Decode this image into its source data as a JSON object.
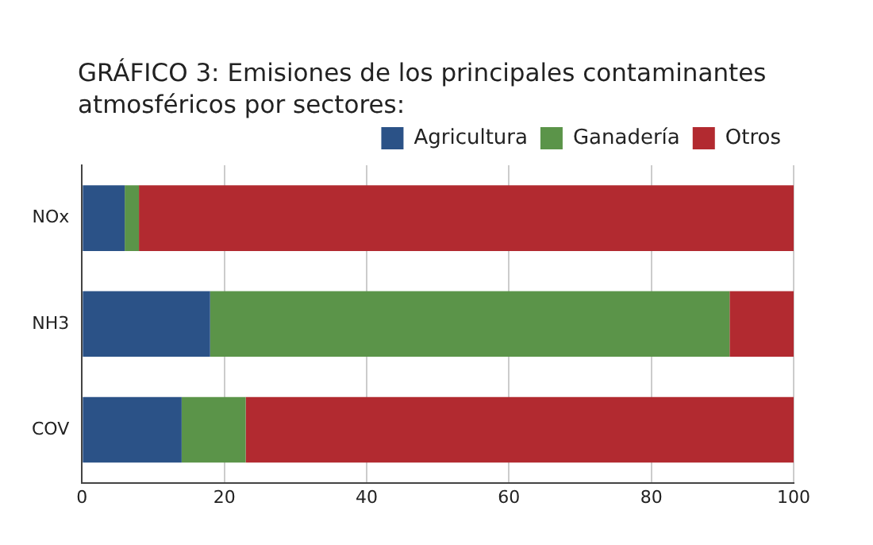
{
  "chart_data": {
    "type": "bar",
    "orientation": "horizontal",
    "stacked": true,
    "title": "GRÁFICO 3: Emisiones de los principales contaminantes atmosféricos por sectores:",
    "categories": [
      "NOx",
      "NH3",
      "COV"
    ],
    "series": [
      {
        "name": "Agricultura",
        "color": "#2b5287",
        "values": [
          6,
          18,
          14
        ]
      },
      {
        "name": "Ganadería",
        "color": "#5b9449",
        "values": [
          2,
          73,
          9
        ]
      },
      {
        "name": "Otros",
        "color": "#b22a30",
        "values": [
          92,
          9,
          77
        ]
      }
    ],
    "xlim": [
      0,
      100
    ],
    "xticks": [
      0,
      20,
      40,
      60,
      80,
      100
    ],
    "grid": "x",
    "legend": "top right"
  }
}
